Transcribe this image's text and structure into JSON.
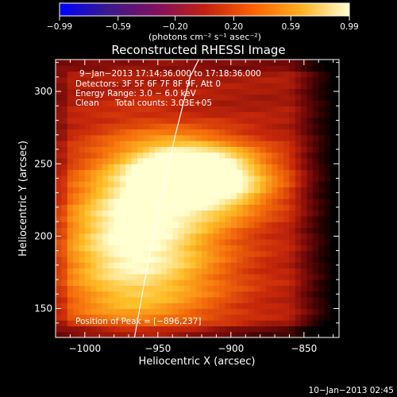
{
  "chart_data": {
    "type": "heatmap",
    "title": "Reconstructed RHESSI Image",
    "xlabel": "Heliocentric X (arcsec)",
    "ylabel": "Heliocentric Y (arcsec)",
    "xlim": [
      -1020,
      -826
    ],
    "ylim": [
      130,
      322
    ],
    "x_ticks": [
      -1000,
      -950,
      -900,
      -850
    ],
    "y_ticks": [
      150,
      200,
      250,
      300
    ],
    "x_tick_labels": [
      "−1000",
      "−950",
      "−900",
      "−850"
    ],
    "y_tick_labels": [
      "150",
      "200",
      "250",
      "300"
    ],
    "colorbar": {
      "range": [
        -0.99,
        0.99
      ],
      "ticks": [
        -0.99,
        -0.59,
        -0.2,
        0.2,
        0.59,
        0.99
      ],
      "tick_labels": [
        "−0.99",
        "−0.59",
        "−0.20",
        "0.20",
        "0.59",
        "0.99"
      ],
      "units_label": "(photons cm⁻² s⁻¹ asec⁻²)",
      "colors": [
        "#0000ff",
        "#3a1a8a",
        "#801060",
        "#c02010",
        "#ff6000",
        "#ffb020",
        "#ffffd0"
      ]
    },
    "annotations": {
      "time_range": "9−Jan−2013 17:14:36.000 to 17:18:36.000",
      "detectors": "Detectors: 3F 5F 6F 7F 8F 9F, Att 0",
      "energy_range": "Energy Range: 3.0 − 6.0 keV",
      "method": "Clean",
      "total_counts": "Total counts: 3.03E+05",
      "peak_position": "Position of Peak = [−896,237]"
    },
    "peak": [
      -896,
      237
    ],
    "limb_points": [
      [
        -966,
        130
      ],
      [
        -958,
        175
      ],
      [
        -948,
        225
      ],
      [
        -938,
        270
      ],
      [
        -928,
        310
      ],
      [
        -922,
        322
      ]
    ],
    "blobs": [
      {
        "x": -905,
        "y": 240,
        "sx": 28,
        "sy": 18,
        "v": 0.55
      },
      {
        "x": -935,
        "y": 245,
        "sx": 22,
        "sy": 14,
        "v": 0.45
      },
      {
        "x": -960,
        "y": 225,
        "sx": 30,
        "sy": 35,
        "v": 0.35
      },
      {
        "x": -985,
        "y": 195,
        "sx": 30,
        "sy": 40,
        "v": 0.25
      },
      {
        "x": -940,
        "y": 190,
        "sx": 40,
        "sy": 30,
        "v": 0.25
      },
      {
        "x": -955,
        "y": 150,
        "sx": 45,
        "sy": 25,
        "v": 0.15
      }
    ]
  },
  "footer_date": "10−Jan−2013 02:45"
}
